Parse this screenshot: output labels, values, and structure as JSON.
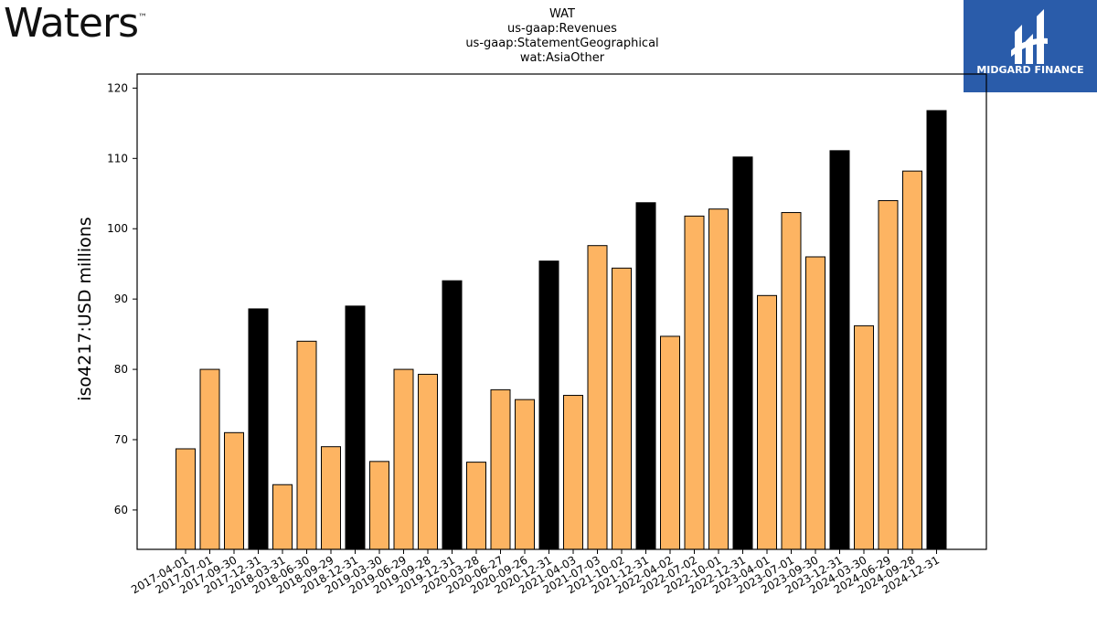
{
  "header": {
    "company_logo_text": "Waters",
    "company_logo_mark": "™",
    "brand_text": "MIDGARD FINANCE",
    "title_lines": [
      "WAT",
      "us-gaap:Revenues",
      "us-gaap:StatementGeographical",
      "wat:AsiaOther"
    ]
  },
  "colors": {
    "quarter_bar": "#fdb462",
    "annual_bar": "#000000",
    "brand_blue": "#2a5caa"
  },
  "chart_data": {
    "type": "bar",
    "title": "WAT\nus-gaap:Revenues\nus-gaap:StatementGeographical\nwat:AsiaOther",
    "xlabel": "",
    "ylabel": "iso4217:USD  millions",
    "ylim": [
      54.4,
      122
    ],
    "yticks": [
      60,
      70,
      80,
      90,
      100,
      110,
      120
    ],
    "grid": false,
    "categories": [
      "2017-04-01",
      "2017-07-01",
      "2017-09-30",
      "2017-12-31",
      "2018-03-31",
      "2018-06-30",
      "2018-09-29",
      "2018-12-31",
      "2019-03-30",
      "2019-06-29",
      "2019-09-28",
      "2019-12-31",
      "2020-03-28",
      "2020-06-27",
      "2020-09-26",
      "2020-12-31",
      "2021-04-03",
      "2021-07-03",
      "2021-10-02",
      "2021-12-31",
      "2022-04-02",
      "2022-07-02",
      "2022-10-01",
      "2022-12-31",
      "2023-04-01",
      "2023-07-01",
      "2023-09-30",
      "2023-12-31",
      "2024-03-30",
      "2024-06-29",
      "2024-09-28",
      "2024-12-31"
    ],
    "values": [
      68.7,
      80.0,
      71.0,
      88.6,
      63.6,
      84.0,
      69.0,
      89.0,
      66.9,
      80.0,
      79.3,
      92.6,
      66.8,
      77.1,
      75.7,
      95.4,
      76.3,
      97.6,
      94.4,
      103.7,
      84.7,
      101.8,
      102.8,
      110.2,
      90.5,
      102.3,
      96.0,
      111.1,
      86.2,
      104.0,
      108.2,
      116.8
    ],
    "bar_kind": [
      "quarter",
      "quarter",
      "quarter",
      "annual",
      "quarter",
      "quarter",
      "quarter",
      "annual",
      "quarter",
      "quarter",
      "quarter",
      "annual",
      "quarter",
      "quarter",
      "quarter",
      "annual",
      "quarter",
      "quarter",
      "quarter",
      "annual",
      "quarter",
      "quarter",
      "quarter",
      "annual",
      "quarter",
      "quarter",
      "quarter",
      "annual",
      "quarter",
      "quarter",
      "quarter",
      "annual"
    ]
  }
}
